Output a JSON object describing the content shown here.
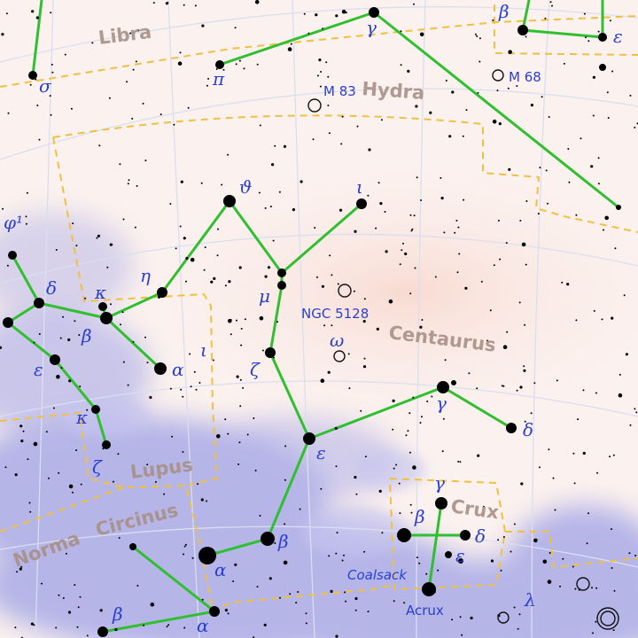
{
  "constellations": [
    {
      "id": "libra",
      "name": "Libra"
    },
    {
      "id": "hydra",
      "name": "Hydra"
    },
    {
      "id": "centaurus",
      "name": "Centaurus"
    },
    {
      "id": "lupus",
      "name": "Lupus"
    },
    {
      "id": "circinus",
      "name": "Circinus"
    },
    {
      "id": "norma",
      "name": "Norma"
    },
    {
      "id": "crux",
      "name": "Crux"
    }
  ],
  "greek_labels": {
    "beta_top": "β",
    "eps_top": "ε",
    "gamma_hyd": "γ",
    "pi_hyd": "π",
    "sigma_lib": "σ",
    "phi1": "φ¹",
    "delta_lup": "δ",
    "kappa_cen": "κ",
    "eta_cen": "η",
    "theta_cen": "ϑ",
    "iota_cen": "ι",
    "mu_cen": "μ",
    "beta_lup": "β",
    "alpha_lup": "α",
    "iota_lup": "ι",
    "eps_lup": "ε",
    "omega_cen": "ω",
    "zeta_cen": "ζ",
    "kappa_lup": "κ",
    "zeta_lup": "ζ",
    "gamma_cen": "γ",
    "delta_cen": "δ",
    "eps_cen": "ε",
    "gamma_cru": "γ",
    "beta_cru": "β",
    "delta_cru": "δ",
    "eps_cru": "ε",
    "beta_cen": "β",
    "alpha_cen": "α",
    "beta_cir": "β",
    "alpha_cir": "α",
    "lambda_cen": "λ"
  },
  "objects": {
    "m83": "M 83",
    "m68": "M 68",
    "ngc5128": "NGC 5128"
  },
  "named_features": {
    "coalsack": "Coalsack",
    "acrux": "Acrux"
  },
  "colors": {
    "figure_line": "#2fbf2f",
    "boundary": "#f0c040",
    "grid": "#d8dff0",
    "star": "#000000",
    "label": "#2a3fd0",
    "const_label": "#a88f86",
    "milky_way": "#8c90e0"
  }
}
